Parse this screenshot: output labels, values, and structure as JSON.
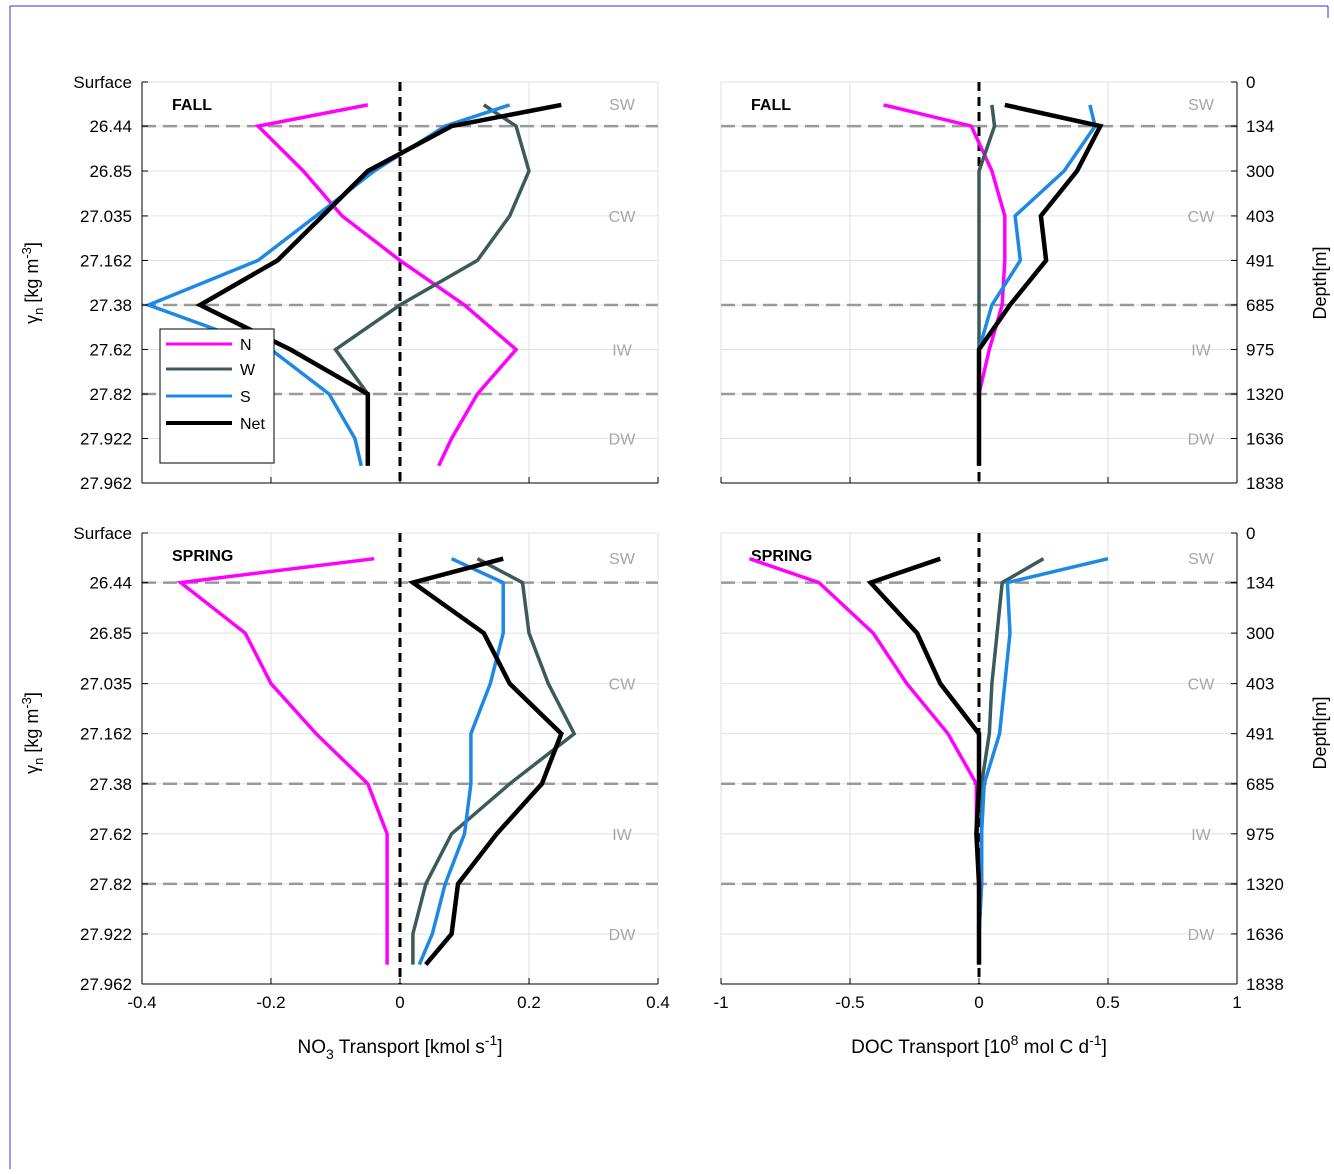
{
  "chart_data": [
    {
      "panel": "top-left",
      "type": "line",
      "season": "FALL",
      "xlabel": "NO3 Transport [kmol s-1]",
      "xlim": [
        -0.4,
        0.4
      ],
      "xticks": [
        "-0.4",
        "-0.2",
        "0",
        "0.2",
        "0.4"
      ],
      "ylabel": "γn [kg m-3]",
      "yticks": [
        "Surface",
        "26.44",
        "26.85",
        "27.035",
        "27.162",
        "27.38",
        "27.62",
        "27.82",
        "27.922",
        "27.962"
      ],
      "water_masses": [
        "SW",
        "CW",
        "IW",
        "DW"
      ],
      "legend": "top-left",
      "series": [
        {
          "name": "N",
          "color": "#ff00ff",
          "values": [
            -0.05,
            -0.22,
            -0.15,
            -0.09,
            0.0,
            0.1,
            0.18,
            0.12,
            0.08,
            0.06
          ]
        },
        {
          "name": "W",
          "color": "#3d5a5a",
          "values": [
            0.13,
            0.18,
            0.2,
            0.17,
            0.12,
            0.0,
            -0.1,
            -0.05,
            -0.05,
            -0.05
          ]
        },
        {
          "name": "S",
          "color": "#1e88e5",
          "values": [
            0.17,
            0.07,
            -0.04,
            -0.13,
            -0.22,
            -0.39,
            -0.2,
            -0.11,
            -0.07,
            -0.06
          ]
        },
        {
          "name": "Net",
          "color": "#000000",
          "values": [
            0.25,
            0.08,
            -0.05,
            -0.12,
            -0.19,
            -0.31,
            -0.17,
            -0.05,
            -0.05,
            -0.05
          ]
        }
      ]
    },
    {
      "panel": "top-right",
      "type": "line",
      "season": "FALL",
      "xlabel": "DOC Transport [108 mol C d-1]",
      "xlim": [
        -1,
        1
      ],
      "xticks": [
        "-1",
        "-0.5",
        "0",
        "0.5",
        "1"
      ],
      "ylabel": "Depth[m]",
      "yticks": [
        "0",
        "134",
        "300",
        "403",
        "491",
        "685",
        "975",
        "1320",
        "1636",
        "1838"
      ],
      "water_masses": [
        "SW",
        "CW",
        "IW",
        "DW"
      ],
      "series": [
        {
          "name": "N",
          "color": "#ff00ff",
          "values": [
            -0.37,
            -0.03,
            0.05,
            0.1,
            0.1,
            0.09,
            0.04,
            0.0,
            0.0,
            0.0
          ]
        },
        {
          "name": "W",
          "color": "#3d5a5a",
          "values": [
            0.05,
            0.06,
            0.0,
            0.0,
            0.0,
            0.0,
            0.0,
            0.0,
            0.0,
            0.0
          ]
        },
        {
          "name": "S",
          "color": "#1e88e5",
          "values": [
            0.43,
            0.45,
            0.33,
            0.14,
            0.16,
            0.05,
            0.0,
            0.0,
            0.0,
            0.0
          ]
        },
        {
          "name": "Net",
          "color": "#000000",
          "values": [
            0.1,
            0.47,
            0.38,
            0.24,
            0.26,
            0.12,
            0.0,
            0.0,
            0.0,
            0.0
          ]
        }
      ]
    },
    {
      "panel": "bottom-left",
      "type": "line",
      "season": "SPRING",
      "xlabel": "NO3 Transport [kmol s-1]",
      "xlim": [
        -0.4,
        0.4
      ],
      "xticks": [
        "-0.4",
        "-0.2",
        "0",
        "0.2",
        "0.4"
      ],
      "ylabel": "γn [kg m-3]",
      "yticks": [
        "Surface",
        "26.44",
        "26.85",
        "27.035",
        "27.162",
        "27.38",
        "27.62",
        "27.82",
        "27.922",
        "27.962"
      ],
      "water_masses": [
        "SW",
        "CW",
        "IW",
        "DW"
      ],
      "series": [
        {
          "name": "N",
          "color": "#ff00ff",
          "values": [
            -0.04,
            -0.34,
            -0.24,
            -0.2,
            -0.13,
            -0.05,
            -0.02,
            -0.02,
            -0.02,
            -0.02
          ]
        },
        {
          "name": "W",
          "color": "#3d5a5a",
          "values": [
            0.12,
            0.19,
            0.2,
            0.23,
            0.27,
            0.17,
            0.08,
            0.04,
            0.02,
            0.02
          ]
        },
        {
          "name": "S",
          "color": "#1e88e5",
          "values": [
            0.08,
            0.16,
            0.16,
            0.14,
            0.11,
            0.11,
            0.1,
            0.07,
            0.05,
            0.03
          ]
        },
        {
          "name": "Net",
          "color": "#000000",
          "values": [
            0.16,
            0.02,
            0.13,
            0.17,
            0.25,
            0.22,
            0.15,
            0.09,
            0.08,
            0.04
          ]
        }
      ]
    },
    {
      "panel": "bottom-right",
      "type": "line",
      "season": "SPRING",
      "xlabel": "DOC Transport [108 mol C d-1]",
      "xlim": [
        -1,
        1
      ],
      "xticks": [
        "-1",
        "-0.5",
        "0",
        "0.5",
        "1"
      ],
      "ylabel": "Depth[m]",
      "yticks": [
        "0",
        "134",
        "300",
        "403",
        "491",
        "685",
        "975",
        "1320",
        "1636",
        "1838"
      ],
      "water_masses": [
        "SW",
        "CW",
        "IW",
        "DW"
      ],
      "series": [
        {
          "name": "N",
          "color": "#ff00ff",
          "values": [
            -0.89,
            -0.62,
            -0.41,
            -0.28,
            -0.12,
            -0.01,
            -0.01,
            0.0,
            0.0,
            0.0
          ]
        },
        {
          "name": "W",
          "color": "#3d5a5a",
          "values": [
            0.25,
            0.09,
            0.07,
            0.05,
            0.04,
            0.01,
            0.01,
            0.01,
            0.0,
            0.0
          ]
        },
        {
          "name": "S",
          "color": "#1e88e5",
          "values": [
            0.5,
            0.11,
            0.12,
            0.1,
            0.08,
            0.02,
            0.01,
            0.01,
            0.0,
            0.0
          ]
        },
        {
          "name": "Net",
          "color": "#000000",
          "values": [
            -0.15,
            -0.42,
            -0.24,
            -0.15,
            0.0,
            0.0,
            -0.01,
            0.0,
            0.0,
            0.0
          ]
        }
      ]
    }
  ],
  "labels": {
    "fall": "FALL",
    "spring": "SPRING",
    "sw": "SW",
    "cw": "CW",
    "iw": "IW",
    "dw": "DW",
    "gamma_symbol": "γ",
    "gamma_sub": "n",
    "gamma_unit_a": " [kg m",
    "gamma_unit_sup": "-3",
    "gamma_unit_b": "]",
    "depth_label": "Depth[m]",
    "no3_a": "NO",
    "no3_sub": "3",
    "no3_b": " Transport [kmol s",
    "no3_sup": "-1",
    "no3_c": "]",
    "doc_a": "DOC Transport [10",
    "doc_sup1": "8",
    "doc_b": " mol C d",
    "doc_sup2": "-1",
    "doc_c": "]"
  },
  "legend": [
    "N",
    "W",
    "S",
    "Net"
  ],
  "colors": {
    "N": "#ff00ff",
    "W": "#3d5a5a",
    "S": "#1e88e5",
    "Net": "#000000",
    "zero_line": "#000000",
    "boundary": "#999999",
    "grid": "#e2e2e2"
  }
}
